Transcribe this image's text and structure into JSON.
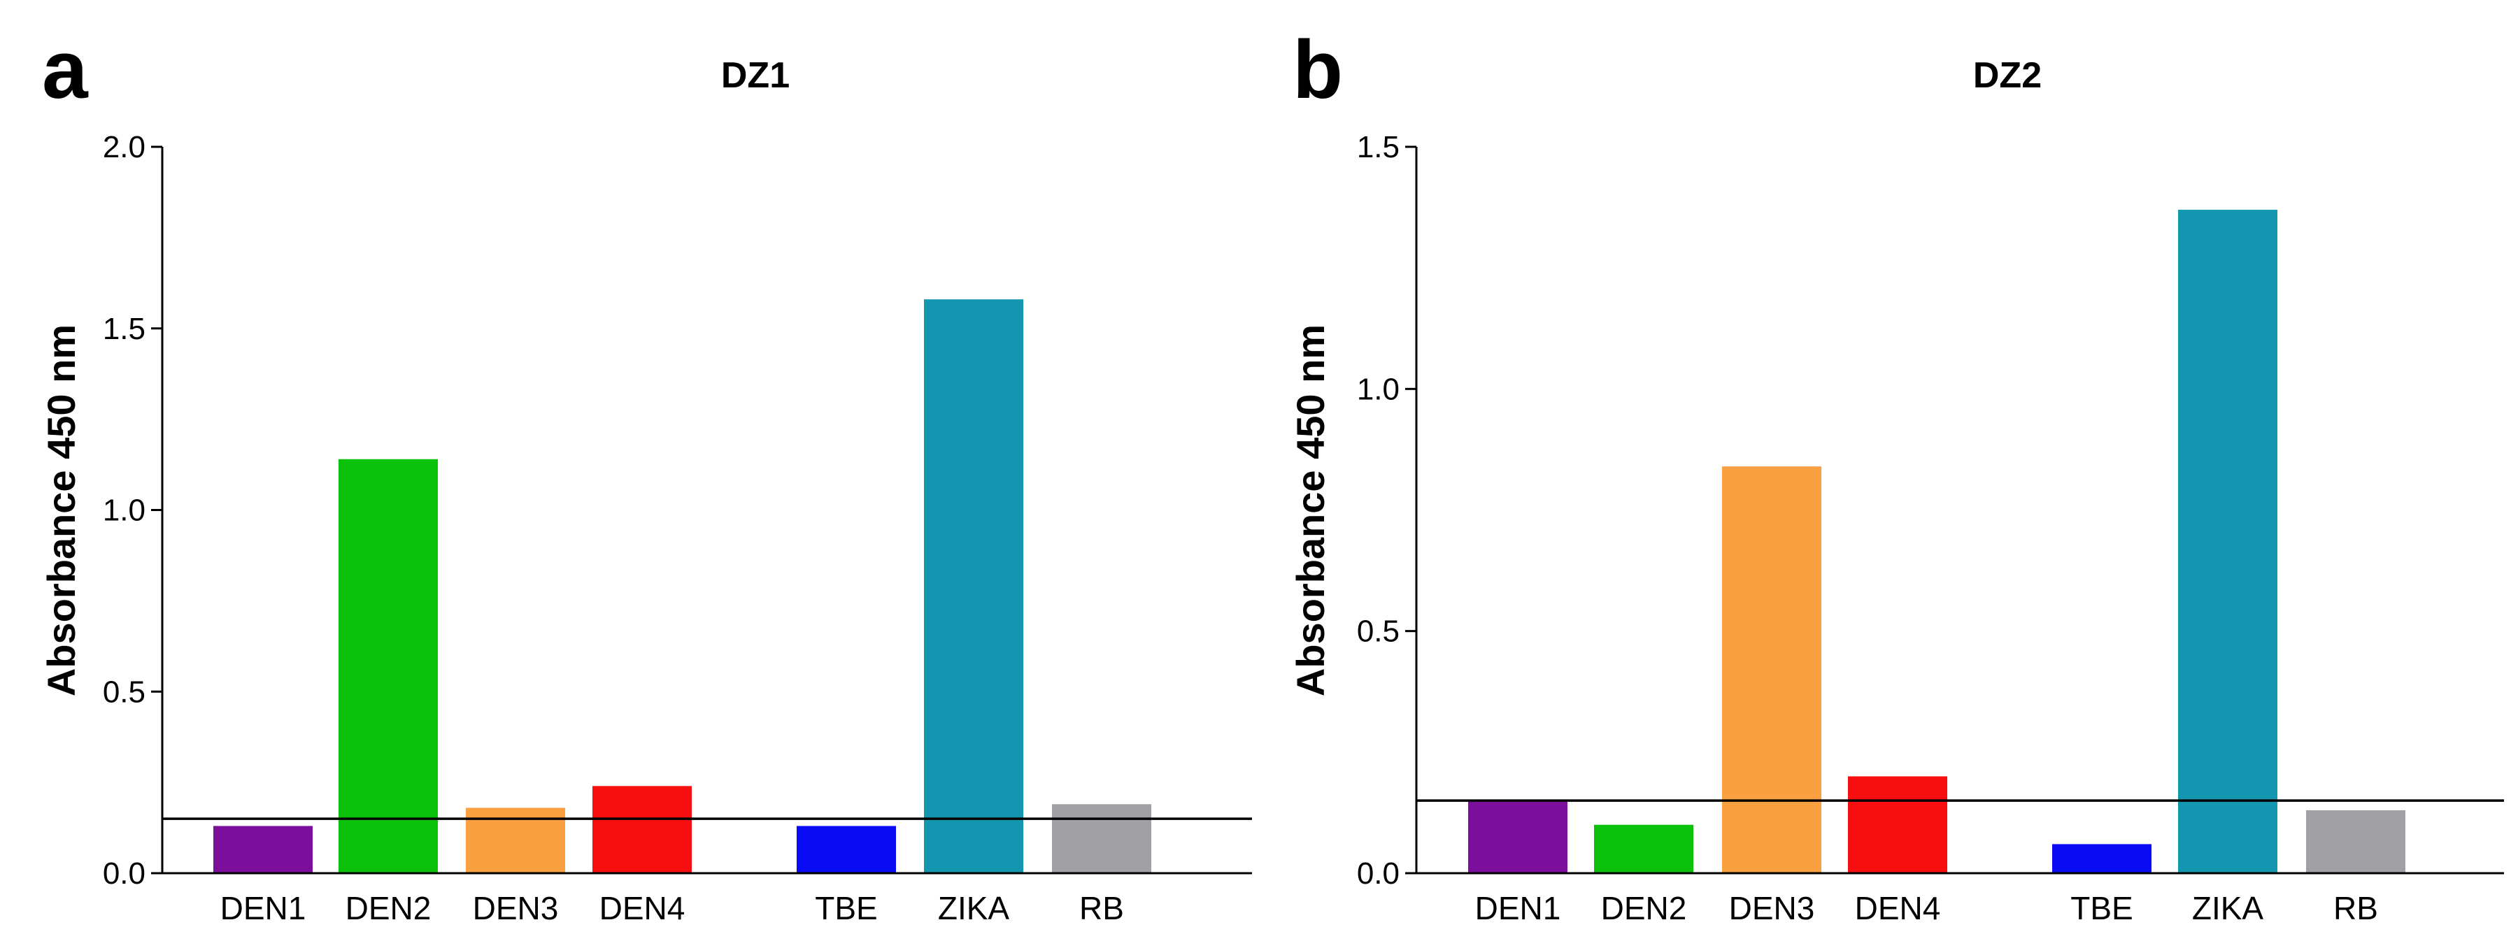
{
  "chart_data": [
    {
      "panel_letter": "a",
      "type": "bar",
      "title": "DZ1",
      "ylabel": "Absorbance 450 nm",
      "xlabel": "",
      "ylim": [
        0,
        2.0
      ],
      "yticks": [
        "0.0",
        "0.5",
        "1.0",
        "1.5",
        "2.0"
      ],
      "ytick_values": [
        0,
        0.5,
        1.0,
        1.5,
        2.0
      ],
      "categories": [
        "DEN1",
        "DEN2",
        "DEN3",
        "DEN4",
        "TBE",
        "ZIKA",
        "RB"
      ],
      "values": [
        0.13,
        1.14,
        0.18,
        0.24,
        0.13,
        1.58,
        0.19
      ],
      "colors": [
        "#7B0E9B",
        "#0CC10C",
        "#FAA040",
        "#F70E0E",
        "#0A0AF5",
        "#1396B0",
        "#A0A0A5"
      ],
      "cutoff": 0.15,
      "grid": false,
      "legend": "none"
    },
    {
      "panel_letter": "b",
      "type": "bar",
      "title": "DZ2",
      "ylabel": "Absorbance 450 nm",
      "xlabel": "",
      "ylim": [
        0,
        1.5
      ],
      "yticks": [
        "0.0",
        "0.5",
        "1.0",
        "1.5"
      ],
      "ytick_values": [
        0,
        0.5,
        1.0,
        1.5
      ],
      "categories": [
        "DEN1",
        "DEN2",
        "DEN3",
        "DEN4",
        "TBE",
        "ZIKA",
        "RB"
      ],
      "values": [
        0.15,
        0.1,
        0.84,
        0.2,
        0.06,
        1.37,
        0.13
      ],
      "colors": [
        "#7B0E9B",
        "#0CC10C",
        "#FAA040",
        "#F70E0E",
        "#0A0AF5",
        "#1396B0",
        "#A0A0A5"
      ],
      "cutoff": 0.15,
      "grid": false,
      "legend": "none"
    }
  ]
}
